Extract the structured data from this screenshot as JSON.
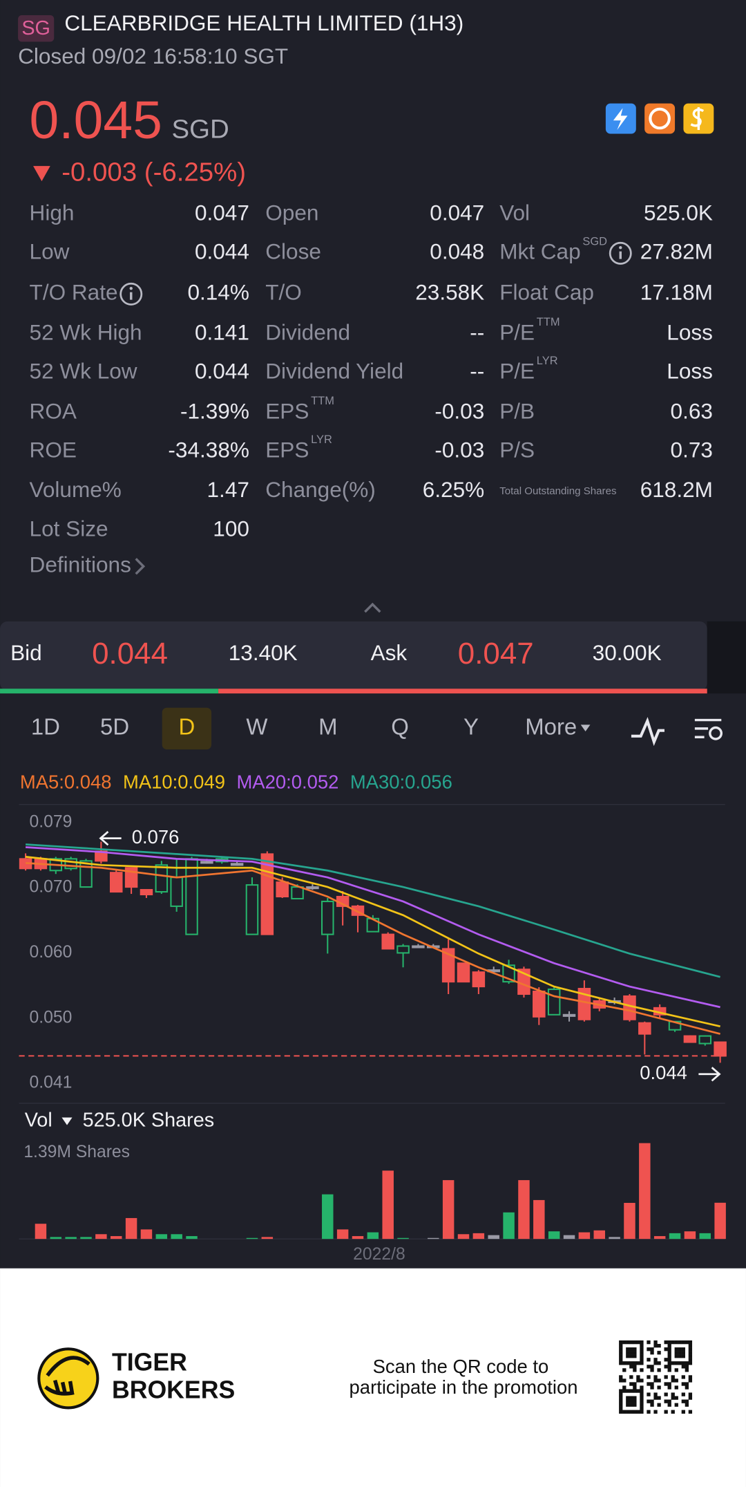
{
  "header": {
    "badge": "SG",
    "title": "CLEARBRIDGE HEALTH LIMITED (1H3)",
    "status": "Closed 09/02 16:58:10 SGT"
  },
  "quote": {
    "price": "0.045",
    "currency": "SGD",
    "change": "-0.003 (-6.25%)"
  },
  "stats": [
    [
      {
        "label": "High",
        "value": "0.047"
      },
      {
        "label": "Low",
        "value": "0.044"
      },
      {
        "label": "T/O Rate",
        "info": true,
        "value": "0.14%"
      },
      {
        "label": "52 Wk High",
        "value": "0.141"
      },
      {
        "label": "52 Wk Low",
        "value": "0.044"
      },
      {
        "label": "ROA",
        "value": "-1.39%"
      },
      {
        "label": "ROE",
        "value": "-34.38%"
      },
      {
        "label": "Volume%",
        "value": "1.47"
      },
      {
        "label": "Lot Size",
        "value": "100"
      }
    ],
    [
      {
        "label": "Open",
        "value": "0.047"
      },
      {
        "label": "Close",
        "value": "0.048"
      },
      {
        "label": "T/O",
        "value": "23.58K"
      },
      {
        "label": "Dividend",
        "value": "--"
      },
      {
        "label": "Dividend Yield",
        "value": "--"
      },
      {
        "label": "EPS",
        "sup": "TTM",
        "value": "-0.03"
      },
      {
        "label": "EPS",
        "sup": "LYR",
        "value": "-0.03"
      },
      {
        "label": "Change(%)",
        "value": "6.25%"
      }
    ],
    [
      {
        "label": "Vol",
        "value": "525.0K"
      },
      {
        "label": "Mkt Cap",
        "sup": "SGD",
        "info": true,
        "value": "27.82M"
      },
      {
        "label": "Float Cap",
        "value": "17.18M"
      },
      {
        "label": "P/E",
        "sup": "TTM",
        "value": "Loss"
      },
      {
        "label": "P/E",
        "sup": "LYR",
        "value": "Loss"
      },
      {
        "label": "P/B",
        "value": "0.63"
      },
      {
        "label": "P/S",
        "value": "0.73"
      },
      {
        "label": "Total Outstanding Shares",
        "small": true,
        "value": "618.2M"
      }
    ]
  ],
  "definitions": "Definitions",
  "order_book": {
    "bid_label": "Bid",
    "bid": "0.044",
    "bid_size": {
      "value": 13400,
      "label": "13.40K"
    },
    "ask_label": "Ask",
    "ask": "0.047",
    "ask_size": {
      "value": 30000,
      "label": "30.00K"
    }
  },
  "periods": {
    "tabs": [
      "1D",
      "5D",
      "D",
      "W",
      "M",
      "Q",
      "Y"
    ],
    "active": 2,
    "more": "More"
  },
  "chart": {
    "type": "candlestick",
    "ylim": [
      0.041,
      0.079
    ],
    "yticks": [
      0.079,
      {
        "value": 0.0695,
        "label": "0.070"
      },
      {
        "value": 0.06,
        "label": "0.060"
      },
      {
        "value": 0.0505,
        "label": "0.050"
      },
      0.041
    ],
    "colors": {
      "up": "#26b36b",
      "down": "#ef5350",
      "flat": "#9a9aa6"
    },
    "open": [
      0.0737,
      0.0737,
      0.072,
      0.0723,
      0.0696,
      0.0748,
      0.0717,
      0.0724,
      0.0692,
      0.0689,
      0.0668,
      0.0627,
      0.0733,
      0.0733,
      0.073,
      0.0627,
      0.0744,
      0.0703,
      0.0679,
      0.0696,
      0.0627,
      0.0682,
      0.0668,
      0.0631,
      0.0627,
      0.06,
      0.061,
      0.061,
      0.0606,
      0.0585,
      0.0572,
      0.0575,
      0.0558,
      0.0576,
      0.0544,
      0.051,
      0.051,
      0.0548,
      0.053,
      0.053,
      0.0537,
      0.0498,
      0.052,
      0.0488,
      0.0479,
      0.0468,
      0.047
    ],
    "close": [
      0.0723,
      0.0723,
      0.0737,
      0.0737,
      0.0734,
      0.0734,
      0.0689,
      0.0696,
      0.0685,
      0.0728,
      0.071,
      0.0737,
      0.0733,
      0.0737,
      0.073,
      0.0699,
      0.0627,
      0.0682,
      0.0696,
      0.0696,
      0.0675,
      0.0668,
      0.0655,
      0.065,
      0.0606,
      0.061,
      0.061,
      0.061,
      0.0558,
      0.0558,
      0.0551,
      0.0575,
      0.0582,
      0.054,
      0.0507,
      0.0547,
      0.051,
      0.0503,
      0.052,
      0.053,
      0.0503,
      0.0482,
      0.051,
      0.05,
      0.047,
      0.0479,
      0.045
    ],
    "high": [
      0.0745,
      0.074,
      0.074,
      0.074,
      0.0737,
      0.0762,
      0.072,
      0.0724,
      0.0692,
      0.0734,
      0.0737,
      0.074,
      0.0737,
      0.074,
      0.0733,
      0.071,
      0.0748,
      0.071,
      0.07,
      0.07,
      0.068,
      0.069,
      0.067,
      0.0655,
      0.063,
      0.0613,
      0.0613,
      0.0613,
      0.062,
      0.0585,
      0.0575,
      0.058,
      0.059,
      0.058,
      0.055,
      0.055,
      0.0515,
      0.056,
      0.0535,
      0.0535,
      0.054,
      0.05,
      0.0525,
      0.05,
      0.048,
      0.048,
      0.047
    ],
    "low": [
      0.072,
      0.072,
      0.0715,
      0.072,
      0.0696,
      0.073,
      0.0689,
      0.0686,
      0.068,
      0.0686,
      0.066,
      0.0627,
      0.073,
      0.073,
      0.0727,
      0.0627,
      0.0627,
      0.068,
      0.0679,
      0.0692,
      0.0599,
      0.064,
      0.063,
      0.0631,
      0.0606,
      0.0579,
      0.0607,
      0.0607,
      0.054,
      0.0558,
      0.054,
      0.057,
      0.0555,
      0.0535,
      0.0495,
      0.051,
      0.05,
      0.05,
      0.0515,
      0.0525,
      0.05,
      0.0452,
      0.0505,
      0.0485,
      0.047,
      0.0465,
      0.044
    ],
    "ma": [
      {
        "label": "MA5:0.048",
        "color": "#f07530",
        "x": [
          0,
          5,
          10,
          15,
          20,
          25,
          30,
          35,
          40,
          46
        ],
        "values": [
          0.0731,
          0.0724,
          0.071,
          0.072,
          0.0682,
          0.0627,
          0.0579,
          0.0537,
          0.0516,
          0.0482
        ]
      },
      {
        "label": "MA10:0.049",
        "color": "#f2c318",
        "x": [
          0,
          5,
          10,
          15,
          20,
          25,
          30,
          35,
          40,
          46
        ],
        "values": [
          0.074,
          0.0728,
          0.0724,
          0.0724,
          0.0696,
          0.0655,
          0.0599,
          0.0551,
          0.0523,
          0.0493
        ]
      },
      {
        "label": "MA20:0.052",
        "color": "#b35cf0",
        "x": [
          0,
          5,
          10,
          15,
          20,
          25,
          30,
          35,
          40,
          46
        ],
        "values": [
          0.0754,
          0.0747,
          0.0737,
          0.0733,
          0.071,
          0.0675,
          0.0627,
          0.0585,
          0.0551,
          0.0521
        ]
      },
      {
        "label": "MA30:0.056",
        "color": "#27a58f",
        "x": [
          0,
          5,
          10,
          15,
          20,
          25,
          30,
          35,
          40,
          46
        ],
        "values": [
          0.0758,
          0.0751,
          0.0744,
          0.0737,
          0.072,
          0.0696,
          0.0668,
          0.0634,
          0.0599,
          0.0565
        ]
      }
    ],
    "high_marker": {
      "value": 0.076,
      "label": "0.076"
    },
    "low_marker": {
      "value": 0.044,
      "label": "0.044"
    },
    "last_price": 0.045,
    "volume": {
      "title": "Vol",
      "current": "525.0K Shares",
      "ylim": [
        0,
        1390000
      ],
      "top_label": {
        "value": 1390000,
        "label": "1.39M Shares"
      },
      "values": [
        0,
        220000,
        28000,
        28000,
        28000,
        69000,
        41000,
        303000,
        138000,
        69000,
        69000,
        41000,
        0,
        0,
        0,
        14000,
        28000,
        0,
        0,
        0,
        647000,
        138000,
        41000,
        96000,
        991000,
        14000,
        0,
        14000,
        853000,
        69000,
        83000,
        55000,
        385000,
        853000,
        564000,
        110000,
        55000,
        96000,
        124000,
        28000,
        523000,
        1390000,
        41000,
        83000,
        110000,
        83000,
        525000
      ]
    },
    "x_label": "2022/8"
  },
  "footer": {
    "brand": [
      "TIGER",
      "BROKERS"
    ],
    "promo": [
      "Scan the QR code to",
      "participate in the promotion"
    ]
  }
}
